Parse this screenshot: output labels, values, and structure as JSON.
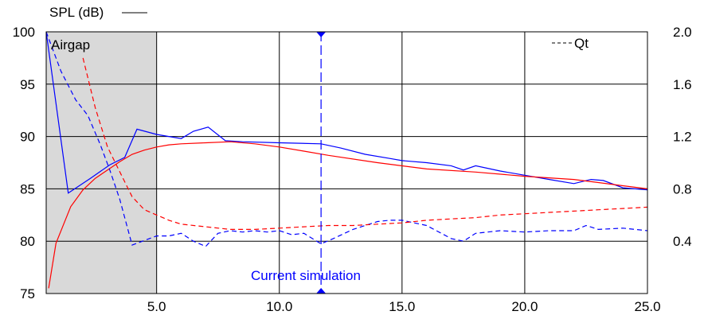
{
  "chart_data": {
    "type": "line",
    "left_axis_label": "SPL (dB)",
    "right_axis_label": "Qt",
    "region_label": "Airgap",
    "marker_label": "Current simulation",
    "marker_x": 11.7,
    "shaded_region_x": [
      0.5,
      5.0
    ],
    "xlim": [
      0.5,
      25.0
    ],
    "ylim_left": [
      75,
      100
    ],
    "ylim_right": [
      0.0,
      2.0
    ],
    "x_ticks": [
      "5.0",
      "10.0",
      "15.0",
      "20.0",
      "25.0"
    ],
    "y_ticks_left": [
      "75",
      "80",
      "85",
      "90",
      "95",
      "100"
    ],
    "y_ticks_right": [
      "0.4",
      "0.8",
      "1.2",
      "1.6",
      "2.0"
    ],
    "colors": {
      "blue": "#0000ff",
      "red": "#ff0000",
      "shade": "#d9d9d9",
      "grid": "#000000"
    },
    "series": [
      {
        "axis": "left",
        "style": "solid",
        "color": "blue",
        "x": [
          0.5,
          1.4,
          2.3,
          3.1,
          3.7,
          4.2,
          5.0,
          5.5,
          6.0,
          6.5,
          7.1,
          7.8,
          8.5,
          10.0,
          11.7,
          12.5,
          13.5,
          14.5,
          15.0,
          16.0,
          17.0,
          17.5,
          18.0,
          19.0,
          20.0,
          21.0,
          22.0,
          22.7,
          23.2,
          24.0,
          25.0
        ],
        "y": [
          100.0,
          84.6,
          86.0,
          87.3,
          88.0,
          90.7,
          90.2,
          90.0,
          89.8,
          90.5,
          90.9,
          89.6,
          89.5,
          89.4,
          89.3,
          88.9,
          88.3,
          87.9,
          87.7,
          87.5,
          87.2,
          86.8,
          87.2,
          86.7,
          86.3,
          85.9,
          85.5,
          85.9,
          85.8,
          85.1,
          84.9
        ]
      },
      {
        "axis": "left",
        "style": "solid",
        "color": "red",
        "x": [
          0.6,
          0.9,
          1.5,
          2.0,
          2.5,
          3.0,
          3.5,
          4.0,
          4.5,
          5.0,
          5.5,
          6.0,
          7.0,
          8.0,
          9.0,
          10.0,
          11.0,
          12.0,
          14.0,
          16.0,
          18.0,
          20.0,
          22.0,
          23.0,
          24.0,
          25.0
        ],
        "y": [
          75.5,
          79.8,
          83.3,
          84.9,
          86.0,
          86.8,
          87.6,
          88.3,
          88.7,
          89.0,
          89.2,
          89.3,
          89.4,
          89.5,
          89.3,
          89.0,
          88.6,
          88.2,
          87.5,
          86.9,
          86.6,
          86.2,
          85.9,
          85.6,
          85.3,
          85.0
        ]
      },
      {
        "axis": "right",
        "style": "dashed",
        "color": "blue",
        "x": [
          0.5,
          1.1,
          1.7,
          2.2,
          2.7,
          3.1,
          3.5,
          4.0,
          5.0,
          5.5,
          6.0,
          6.5,
          7.0,
          7.5,
          8.0,
          8.5,
          9.0,
          9.5,
          10.0,
          10.5,
          11.0,
          11.7,
          12.2,
          13.0,
          14.0,
          14.5,
          15.0,
          16.0,
          17.0,
          17.5,
          18.0,
          19.0,
          20.0,
          21.0,
          22.0,
          22.5,
          23.0,
          24.0,
          25.0
        ],
        "y": [
          2.0,
          1.7,
          1.48,
          1.36,
          1.14,
          0.94,
          0.72,
          0.37,
          0.44,
          0.44,
          0.46,
          0.4,
          0.36,
          0.46,
          0.48,
          0.47,
          0.48,
          0.47,
          0.48,
          0.45,
          0.46,
          0.38,
          0.42,
          0.49,
          0.55,
          0.56,
          0.56,
          0.52,
          0.42,
          0.4,
          0.46,
          0.48,
          0.47,
          0.48,
          0.48,
          0.52,
          0.49,
          0.5,
          0.48
        ]
      },
      {
        "axis": "right",
        "style": "dashed",
        "color": "red",
        "x": [
          2.0,
          2.5,
          3.0,
          3.5,
          4.0,
          4.5,
          5.0,
          5.5,
          6.0,
          7.0,
          8.0,
          9.0,
          10.0,
          11.0,
          12.0,
          13.0,
          14.0,
          15.0,
          16.0,
          17.0,
          18.0,
          19.0,
          20.0,
          21.0,
          22.0,
          23.0,
          24.0,
          25.0
        ],
        "y": [
          1.8,
          1.42,
          1.12,
          0.93,
          0.74,
          0.64,
          0.6,
          0.56,
          0.53,
          0.51,
          0.49,
          0.49,
          0.5,
          0.51,
          0.52,
          0.52,
          0.53,
          0.54,
          0.56,
          0.57,
          0.58,
          0.6,
          0.61,
          0.62,
          0.63,
          0.64,
          0.65,
          0.66
        ]
      }
    ]
  }
}
